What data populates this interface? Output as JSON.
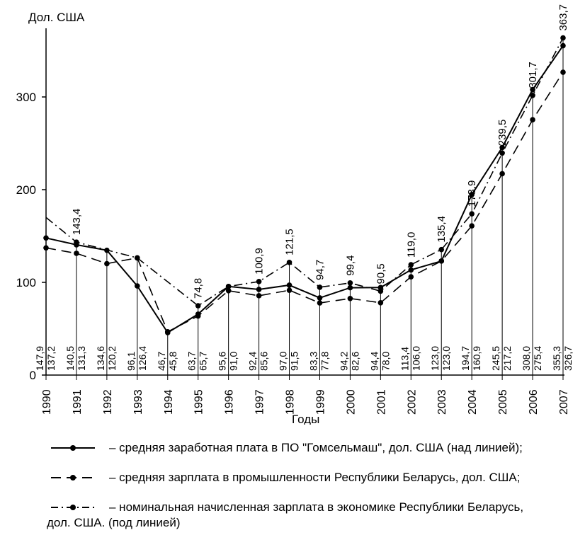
{
  "chart_data": {
    "type": "line",
    "ylabel": "Дол. США",
    "xlabel": "Годы",
    "ylim": [
      0,
      370
    ],
    "yticks": [
      "0",
      "100",
      "200",
      "300"
    ],
    "x": [
      "1990",
      "1991",
      "1992",
      "1993",
      "1994",
      "1995",
      "1996",
      "1997",
      "1998",
      "1999",
      "2000",
      "2001",
      "2002",
      "2003",
      "2004",
      "2005",
      "2006",
      "2007"
    ],
    "series": [
      {
        "name": "средняя заработная плата в ПО \"Гомсельмаш\", дол. США (над линией);",
        "style": "solid",
        "values": [
          147.9,
          140.5,
          134.6,
          96.1,
          45.8,
          65.7,
          95.6,
          92.4,
          97.0,
          83.3,
          94.2,
          94.4,
          113.4,
          123.0,
          194.7,
          245.5,
          308.0,
          355.3
        ]
      },
      {
        "name": "средняя зарплата в промышленности Республики Беларусь, дол. США;",
        "style": "dash",
        "values": [
          137.2,
          131.3,
          120.2,
          126.4,
          46.7,
          63.7,
          91.0,
          85.6,
          91.5,
          77.8,
          82.6,
          78.0,
          106.0,
          123.0,
          160.9,
          217.2,
          275.4,
          326.7
        ]
      },
      {
        "name": "номинальная начисленная зарплата в экономике Республики Беларусь, дол. США.  (под линией)",
        "style": "dashdot",
        "values": [
          170.0,
          143.4,
          null,
          126.4,
          null,
          74.8,
          95.6,
          100.9,
          121.5,
          94.7,
          99.4,
          90.5,
          119.0,
          135.4,
          173.9,
          239.5,
          301.7,
          363.7
        ]
      }
    ],
    "above_labels": [
      "143,4",
      "74,8",
      "100,9",
      "121,5",
      "94,7",
      "99,4",
      "90,5",
      "119,0",
      "135,4",
      "173,9",
      "239,5",
      "301,7",
      "363,7"
    ],
    "bottom_labels": [
      [
        "147,9",
        "137,2"
      ],
      [
        "140,5",
        "131,3"
      ],
      [
        "134,6",
        "120,2"
      ],
      [
        "96,1",
        "126,4"
      ],
      [
        "46,7",
        "45,8"
      ],
      [
        "63,7",
        "65,7"
      ],
      [
        "95,6",
        "91,0"
      ],
      [
        "92,4",
        "85,6"
      ],
      [
        "97,0",
        "91,5"
      ],
      [
        "83,3",
        "77,8"
      ],
      [
        "94,2",
        "82,6"
      ],
      [
        "94,4",
        "78,0"
      ],
      [
        "113,4",
        "106,0"
      ],
      [
        "123,0",
        "123,0"
      ],
      [
        "194,7",
        "160,9"
      ],
      [
        "245,5",
        "217,2"
      ],
      [
        "308,0",
        "275,4"
      ],
      [
        "355,3",
        "326,7"
      ]
    ],
    "grid": false
  },
  "legend": {
    "item1_text": "–  средняя заработная плата в ПО \"Гомсельмаш\", дол. США (над линией);",
    "item2_text": "–  средняя зарплата в промышленности Республики Беларусь, дол. США;",
    "item3_text": "–  номинальная начисленная зарплата в экономике Республики Беларусь,",
    "item3_text_cont": "дол. США.  (под линией)"
  }
}
